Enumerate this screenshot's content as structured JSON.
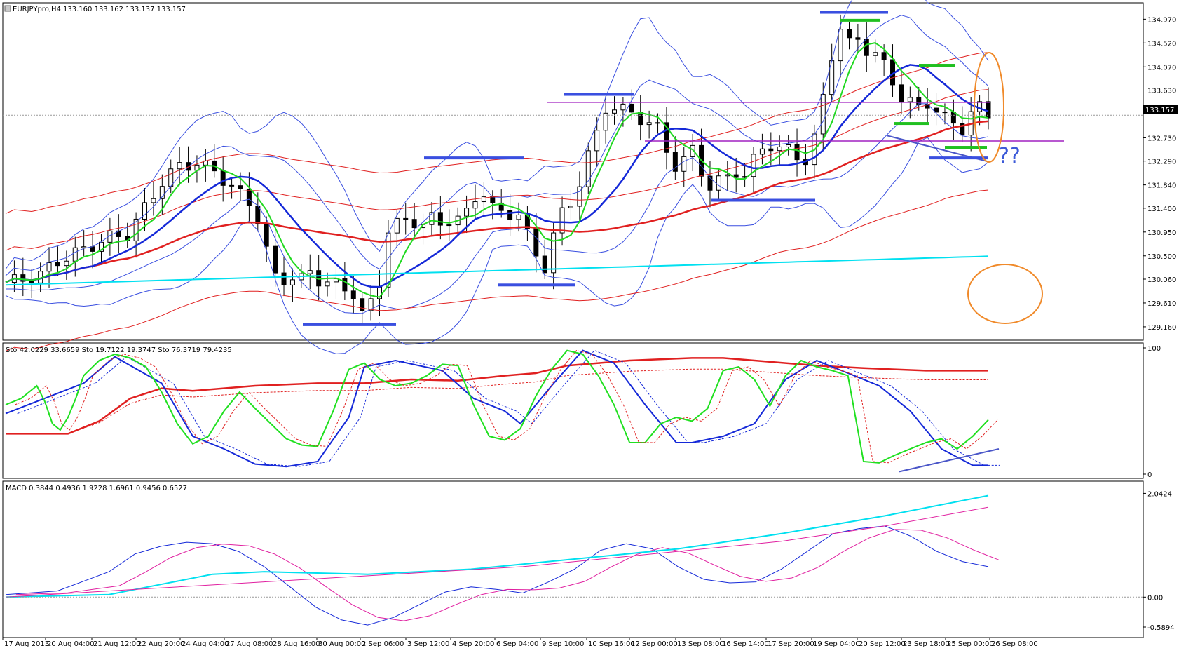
{
  "chart_data": {
    "type": "candlestick",
    "symbol_header": "EURJPYpro,H4  133.160 133.162 133.137 133.157",
    "current_price_label": "133.157",
    "annotation_text": "??",
    "price_axis": {
      "ticks": [
        "134.970",
        "134.520",
        "134.070",
        "133.630",
        "133.157",
        "132.730",
        "132.290",
        "131.840",
        "131.400",
        "130.950",
        "130.500",
        "130.060",
        "129.610",
        "129.160"
      ],
      "ylim": [
        129.0,
        135.2
      ]
    },
    "stochastic": {
      "header": "Sto 42.0229 33.6659  Sto 19.7122 19.3747  Sto 76.3719 79.4235",
      "ticks": [
        "100",
        "0"
      ],
      "ylim": [
        0,
        100
      ]
    },
    "macd": {
      "header": "MACD 0.3844 0.4936 1.9228 1.6961 0.9456 0.6527",
      "ticks": [
        "2.0424",
        "0.00",
        "-0.5894"
      ],
      "ylim": [
        -0.7,
        2.2
      ]
    },
    "x_ticks": [
      "17 Aug 2013",
      "20 Aug 04:00",
      "21 Aug 12:00",
      "22 Aug 20:00",
      "24 Aug 04:00",
      "27 Aug 08:00",
      "28 Aug 16:00",
      "30 Aug 00:00",
      "2 Sep 06:00",
      "3 Sep 12:00",
      "4 Sep 20:00",
      "6 Sep 04:00",
      "9 Sep 10:00",
      "10 Sep 16:00",
      "12 Sep 00:00",
      "13 Sep 08:00",
      "16 Sep 14:00",
      "17 Sep 20:00",
      "19 Sep 04:00",
      "20 Sep 12:00",
      "23 Sep 18:00",
      "25 Sep 00:00",
      "26 Sep 08:00"
    ],
    "price_path": [
      [
        0,
        130.0
      ],
      [
        2,
        130.05
      ],
      [
        4,
        130.15
      ],
      [
        6,
        130.4
      ],
      [
        8,
        130.55
      ],
      [
        10,
        130.7
      ],
      [
        12,
        130.85
      ],
      [
        14,
        130.9
      ],
      [
        16,
        131.4
      ],
      [
        18,
        131.9
      ],
      [
        20,
        132.2
      ],
      [
        22,
        132.25
      ],
      [
        24,
        132.1
      ],
      [
        26,
        131.8
      ],
      [
        28,
        131.5
      ],
      [
        29,
        131.2
      ],
      [
        30,
        130.6
      ],
      [
        31,
        130.1
      ],
      [
        32,
        130.05
      ],
      [
        33,
        130.1
      ],
      [
        34,
        130.05
      ],
      [
        35,
        130.2
      ],
      [
        36,
        130.05
      ],
      [
        38,
        129.95
      ],
      [
        40,
        129.8
      ],
      [
        41,
        129.4
      ],
      [
        42,
        129.6
      ],
      [
        43,
        130.0
      ],
      [
        44,
        131.0
      ],
      [
        45,
        131.1
      ],
      [
        46,
        131.15
      ],
      [
        47,
        131.15
      ],
      [
        48,
        131.1
      ],
      [
        49,
        131.2
      ],
      [
        50,
        131.1
      ],
      [
        51,
        131.2
      ],
      [
        52,
        131.2
      ],
      [
        53,
        131.3
      ],
      [
        54,
        131.6
      ],
      [
        55,
        131.7
      ],
      [
        56,
        131.4
      ],
      [
        57,
        131.3
      ],
      [
        58,
        131.3
      ],
      [
        59,
        131.3
      ],
      [
        60,
        130.9
      ],
      [
        61,
        130.5
      ],
      [
        62,
        130.3
      ],
      [
        63,
        130.9
      ],
      [
        64,
        131.3
      ],
      [
        65,
        131.5
      ],
      [
        66,
        131.9
      ],
      [
        67,
        132.4
      ],
      [
        68,
        132.8
      ],
      [
        69,
        133.3
      ],
      [
        70,
        133.3
      ],
      [
        71,
        133.25
      ],
      [
        72,
        133.2
      ],
      [
        73,
        133.1
      ],
      [
        74,
        133.0
      ],
      [
        75,
        132.9
      ],
      [
        76,
        132.5
      ],
      [
        77,
        132.2
      ],
      [
        78,
        132.3
      ],
      [
        79,
        132.5
      ],
      [
        80,
        132.1
      ],
      [
        81,
        131.8
      ],
      [
        82,
        131.9
      ],
      [
        83,
        132.0
      ],
      [
        84,
        132.1
      ],
      [
        85,
        132.0
      ],
      [
        86,
        132.3
      ],
      [
        87,
        132.55
      ],
      [
        88,
        132.6
      ],
      [
        89,
        132.5
      ],
      [
        90,
        132.5
      ],
      [
        91,
        132.4
      ],
      [
        92,
        132.3
      ],
      [
        93,
        132.7
      ],
      [
        94,
        133.5
      ],
      [
        95,
        134.3
      ],
      [
        96,
        134.8
      ],
      [
        97,
        134.5
      ],
      [
        98,
        134.6
      ],
      [
        99,
        134.4
      ],
      [
        100,
        134.3
      ],
      [
        101,
        134.1
      ],
      [
        102,
        133.8
      ],
      [
        103,
        133.5
      ],
      [
        104,
        133.4
      ],
      [
        105,
        133.3
      ],
      [
        106,
        133.4
      ],
      [
        107,
        133.25
      ],
      [
        108,
        133.1
      ],
      [
        109,
        133.0
      ],
      [
        110,
        132.9
      ],
      [
        111,
        133.2
      ],
      [
        112,
        133.3
      ],
      [
        113,
        133.16
      ]
    ],
    "stoch_main": [
      [
        0,
        55
      ],
      [
        2,
        60
      ],
      [
        4,
        70
      ],
      [
        5,
        58
      ],
      [
        6,
        40
      ],
      [
        7,
        35
      ],
      [
        8,
        45
      ],
      [
        9,
        60
      ],
      [
        10,
        78
      ],
      [
        12,
        90
      ],
      [
        14,
        95
      ],
      [
        16,
        92
      ],
      [
        18,
        85
      ],
      [
        20,
        65
      ],
      [
        22,
        40
      ],
      [
        24,
        24
      ],
      [
        26,
        30
      ],
      [
        28,
        50
      ],
      [
        30,
        65
      ],
      [
        32,
        52
      ],
      [
        34,
        40
      ],
      [
        36,
        28
      ],
      [
        38,
        23
      ],
      [
        40,
        22
      ],
      [
        42,
        50
      ],
      [
        44,
        83
      ],
      [
        46,
        88
      ],
      [
        48,
        75
      ],
      [
        50,
        70
      ],
      [
        52,
        72
      ],
      [
        54,
        78
      ],
      [
        56,
        87
      ],
      [
        58,
        86
      ],
      [
        60,
        55
      ],
      [
        62,
        30
      ],
      [
        64,
        27
      ],
      [
        66,
        36
      ],
      [
        68,
        62
      ],
      [
        70,
        83
      ],
      [
        72,
        98
      ],
      [
        74,
        95
      ],
      [
        76,
        78
      ],
      [
        78,
        55
      ],
      [
        80,
        25
      ],
      [
        82,
        25
      ],
      [
        84,
        40
      ],
      [
        86,
        45
      ],
      [
        88,
        42
      ],
      [
        90,
        52
      ],
      [
        92,
        82
      ],
      [
        94,
        85
      ],
      [
        96,
        75
      ],
      [
        98,
        54
      ],
      [
        100,
        78
      ],
      [
        102,
        90
      ],
      [
        104,
        85
      ],
      [
        106,
        82
      ],
      [
        108,
        78
      ],
      [
        110,
        10
      ],
      [
        112,
        9
      ],
      [
        114,
        15
      ],
      [
        116,
        20
      ],
      [
        118,
        25
      ],
      [
        120,
        28
      ],
      [
        122,
        20
      ],
      [
        124,
        30
      ],
      [
        126,
        43
      ]
    ],
    "stoch_slow": [
      [
        0,
        48
      ],
      [
        10,
        72
      ],
      [
        14,
        93
      ],
      [
        20,
        72
      ],
      [
        24,
        30
      ],
      [
        28,
        20
      ],
      [
        32,
        8
      ],
      [
        36,
        6
      ],
      [
        40,
        10
      ],
      [
        44,
        45
      ],
      [
        46,
        85
      ],
      [
        50,
        90
      ],
      [
        56,
        82
      ],
      [
        60,
        60
      ],
      [
        64,
        50
      ],
      [
        66,
        40
      ],
      [
        70,
        70
      ],
      [
        74,
        98
      ],
      [
        78,
        88
      ],
      [
        82,
        55
      ],
      [
        86,
        25
      ],
      [
        88,
        25
      ],
      [
        92,
        30
      ],
      [
        96,
        40
      ],
      [
        100,
        75
      ],
      [
        104,
        90
      ],
      [
        108,
        80
      ],
      [
        112,
        70
      ],
      [
        116,
        50
      ],
      [
        120,
        20
      ],
      [
        124,
        7
      ],
      [
        126,
        7
      ]
    ],
    "stoch_long": [
      [
        0,
        32
      ],
      [
        4,
        32
      ],
      [
        8,
        32
      ],
      [
        12,
        42
      ],
      [
        16,
        60
      ],
      [
        20,
        68
      ],
      [
        24,
        66
      ],
      [
        28,
        68
      ],
      [
        32,
        70
      ],
      [
        40,
        72
      ],
      [
        46,
        72
      ],
      [
        52,
        75
      ],
      [
        58,
        74
      ],
      [
        64,
        78
      ],
      [
        68,
        80
      ],
      [
        72,
        86
      ],
      [
        76,
        88
      ],
      [
        80,
        90
      ],
      [
        88,
        92
      ],
      [
        92,
        92
      ],
      [
        96,
        90
      ],
      [
        100,
        88
      ],
      [
        104,
        86
      ],
      [
        110,
        84
      ],
      [
        118,
        82
      ],
      [
        126,
        82
      ]
    ],
    "macd_main": [
      [
        0,
        0.05
      ],
      [
        4,
        0.12
      ],
      [
        8,
        0.5
      ],
      [
        10,
        0.85
      ],
      [
        12,
        1.0
      ],
      [
        14,
        1.08
      ],
      [
        16,
        1.05
      ],
      [
        18,
        0.9
      ],
      [
        20,
        0.6
      ],
      [
        22,
        0.2
      ],
      [
        24,
        -0.2
      ],
      [
        26,
        -0.45
      ],
      [
        28,
        -0.55
      ],
      [
        30,
        -0.4
      ],
      [
        32,
        -0.15
      ],
      [
        34,
        0.1
      ],
      [
        36,
        0.2
      ],
      [
        38,
        0.15
      ],
      [
        40,
        0.08
      ],
      [
        42,
        0.3
      ],
      [
        44,
        0.55
      ],
      [
        46,
        0.92
      ],
      [
        48,
        1.05
      ],
      [
        50,
        0.95
      ],
      [
        52,
        0.6
      ],
      [
        54,
        0.35
      ],
      [
        56,
        0.28
      ],
      [
        58,
        0.3
      ],
      [
        60,
        0.55
      ],
      [
        62,
        0.9
      ],
      [
        64,
        1.25
      ],
      [
        66,
        1.35
      ],
      [
        68,
        1.4
      ],
      [
        70,
        1.2
      ],
      [
        72,
        0.9
      ],
      [
        74,
        0.7
      ],
      [
        76,
        0.6
      ]
    ]
  }
}
